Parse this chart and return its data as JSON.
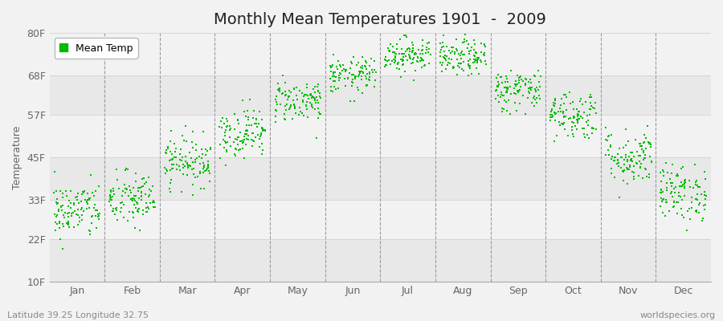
{
  "title": "Monthly Mean Temperatures 1901  -  2009",
  "ylabel": "Temperature",
  "subtitle_left": "Latitude 39.25 Longitude 32.75",
  "subtitle_right": "worldspecies.org",
  "yticks_labels": [
    "10F",
    "22F",
    "33F",
    "45F",
    "57F",
    "68F",
    "80F"
  ],
  "yticks_values": [
    10,
    22,
    33,
    45,
    57,
    68,
    80
  ],
  "month_names": [
    "Jan",
    "Feb",
    "Mar",
    "Apr",
    "May",
    "Jun",
    "Jul",
    "Aug",
    "Sep",
    "Oct",
    "Nov",
    "Dec"
  ],
  "monthly_mean_F": [
    30.0,
    33.0,
    44.0,
    52.0,
    61.0,
    68.0,
    74.0,
    73.0,
    64.0,
    57.0,
    45.0,
    35.0
  ],
  "monthly_std_F": [
    4.0,
    4.0,
    3.5,
    3.5,
    3.0,
    2.5,
    2.5,
    2.5,
    3.0,
    3.5,
    4.0,
    4.0
  ],
  "n_years": 109,
  "dot_color": "#00bb00",
  "dot_size": 4,
  "background_color": "#f2f2f2",
  "plot_bg_color": "#f2f2f2",
  "band_even_color": "#e8e8e8",
  "band_odd_color": "#f2f2f2",
  "grid_color": "#999999",
  "title_fontsize": 14,
  "axis_label_fontsize": 9,
  "tick_fontsize": 9,
  "footer_fontsize": 8,
  "legend_label": "Mean Temp",
  "xmin": -0.5,
  "xmax": 11.5,
  "ymin": 10,
  "ymax": 80
}
